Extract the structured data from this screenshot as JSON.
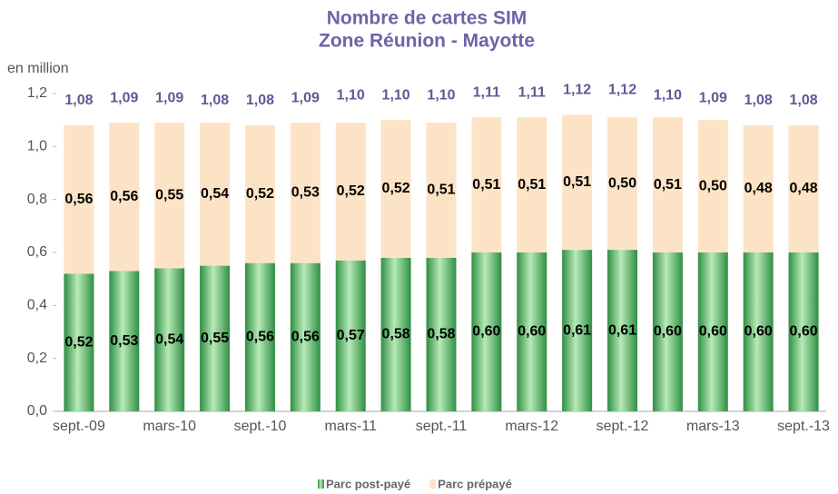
{
  "chart_data": {
    "type": "stacked_bar",
    "title": "Nombre de cartes SIM",
    "subtitle": "Zone Réunion - Mayotte",
    "ylabel": "en million",
    "categories": [
      "sept.-09",
      null,
      "mars-10",
      null,
      "sept.-10",
      null,
      "mars-11",
      null,
      "sept.-11",
      null,
      "mars-12",
      null,
      "sept.-12",
      null,
      "mars-13",
      null,
      "sept.-13"
    ],
    "series": [
      {
        "name": "Parc post-payé",
        "color": "#3f9f50",
        "values": [
          0.52,
          0.53,
          0.54,
          0.55,
          0.56,
          0.56,
          0.57,
          0.58,
          0.58,
          0.6,
          0.6,
          0.61,
          0.61,
          0.6,
          0.6,
          0.6,
          0.6
        ],
        "value_labels": [
          "0,52",
          "0,53",
          "0,54",
          "0,55",
          "0,56",
          "0,56",
          "0,57",
          "0,58",
          "0,58",
          "0,60",
          "0,60",
          "0,61",
          "0,61",
          "0,60",
          "0,60",
          "0,60",
          "0,60"
        ]
      },
      {
        "name": "Parc prépayé",
        "color": "#fde3c6",
        "values": [
          0.56,
          0.56,
          0.55,
          0.54,
          0.52,
          0.53,
          0.52,
          0.52,
          0.51,
          0.51,
          0.51,
          0.51,
          0.5,
          0.51,
          0.5,
          0.48,
          0.48
        ],
        "value_labels": [
          "0,56",
          "0,56",
          "0,55",
          "0,54",
          "0,52",
          "0,53",
          "0,52",
          "0,52",
          "0,51",
          "0,51",
          "0,51",
          "0,51",
          "0,50",
          "0,51",
          "0,50",
          "0,48",
          "0,48"
        ]
      }
    ],
    "totals": [
      1.08,
      1.09,
      1.09,
      1.08,
      1.08,
      1.09,
      1.1,
      1.1,
      1.1,
      1.11,
      1.11,
      1.12,
      1.12,
      1.1,
      1.09,
      1.08,
      1.08
    ],
    "total_labels": [
      "1,08",
      "1,09",
      "1,09",
      "1,08",
      "1,08",
      "1,09",
      "1,10",
      "1,10",
      "1,10",
      "1,11",
      "1,11",
      "1,12",
      "1,12",
      "1,10",
      "1,09",
      "1,08",
      "1,08"
    ],
    "ylim": [
      0,
      1.2
    ],
    "yticks": [
      {
        "value": 0,
        "label": "0,0"
      },
      {
        "value": 0.2,
        "label": "0,2"
      },
      {
        "value": 0.4,
        "label": "0,4"
      },
      {
        "value": 0.6,
        "label": "0,6"
      },
      {
        "value": 0.8,
        "label": "0,8"
      },
      {
        "value": 1.0,
        "label": "1,0"
      },
      {
        "value": 1.2,
        "label": "1,2"
      }
    ],
    "legend": "bottom"
  }
}
